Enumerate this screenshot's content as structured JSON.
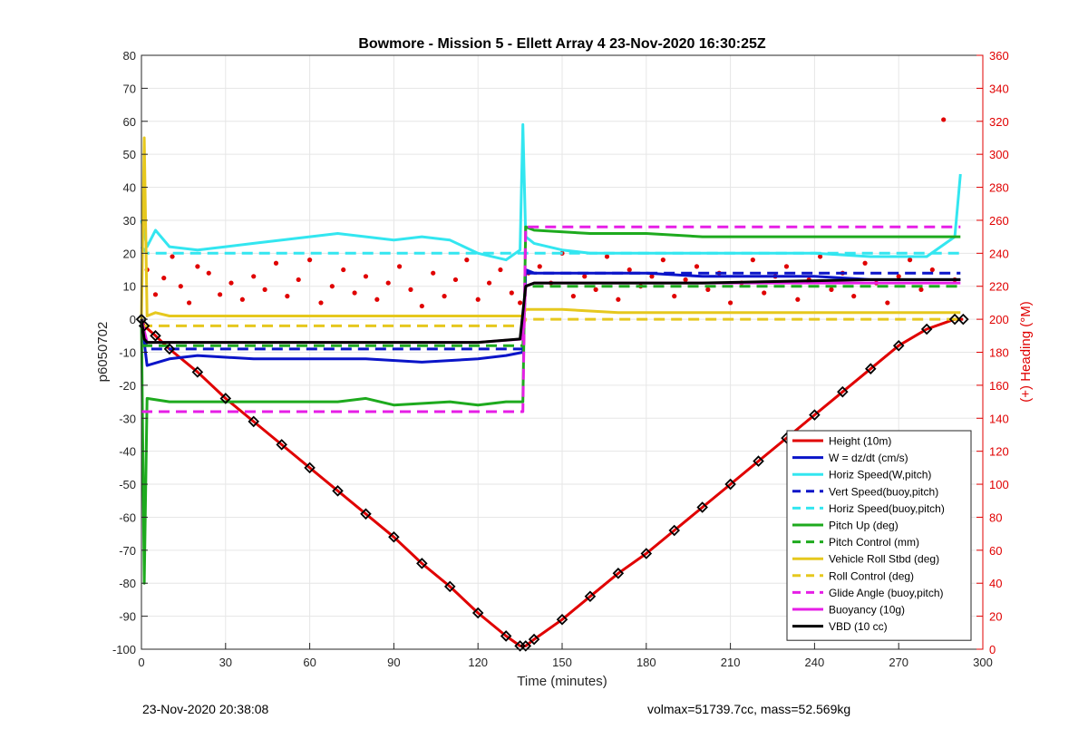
{
  "chart_data": {
    "type": "line",
    "title": "Bowmore - Mission 5 - Ellett Array 4 23-Nov-2020 16:30:25Z",
    "xlabel": "Time (minutes)",
    "ylabel": "p6050702",
    "y2label": "(+) Heading (°M)",
    "xlim": [
      0,
      300
    ],
    "ylim": [
      -100,
      80
    ],
    "y2lim": [
      0,
      360
    ],
    "xticks": [
      0,
      30,
      60,
      90,
      120,
      150,
      180,
      210,
      240,
      270,
      300
    ],
    "yticks": [
      -100,
      -90,
      -80,
      -70,
      -60,
      -50,
      -40,
      -30,
      -20,
      -10,
      0,
      10,
      20,
      30,
      40,
      50,
      60,
      70,
      80
    ],
    "y2ticks": [
      0,
      20,
      40,
      60,
      80,
      100,
      120,
      140,
      160,
      180,
      200,
      220,
      240,
      260,
      280,
      300,
      320,
      340,
      360
    ],
    "grid": true,
    "legend_position": "bottom-right",
    "series": [
      {
        "name": "Height (10m)",
        "color": "#e00000",
        "style": "solid",
        "x": [
          0,
          1,
          5,
          10,
          20,
          30,
          40,
          50,
          60,
          70,
          80,
          90,
          100,
          110,
          120,
          130,
          135,
          137,
          140,
          150,
          160,
          170,
          180,
          190,
          200,
          210,
          220,
          230,
          240,
          250,
          260,
          270,
          280,
          290,
          293
        ],
        "y": [
          0,
          -2,
          -5,
          -9,
          -16,
          -24,
          -31,
          -38,
          -45,
          -52,
          -59,
          -66,
          -74,
          -81,
          -89,
          -96,
          -99,
          -99,
          -97,
          -91,
          -84,
          -77,
          -71,
          -64,
          -57,
          -50,
          -43,
          -36,
          -29,
          -22,
          -15,
          -8,
          -3,
          0,
          0
        ]
      },
      {
        "name": "W = dz/dt (cm/s)",
        "color": "#0a14c8",
        "style": "solid",
        "x": [
          0,
          2,
          10,
          20,
          40,
          60,
          80,
          100,
          120,
          130,
          136,
          137,
          140,
          160,
          180,
          200,
          220,
          240,
          260,
          280,
          292
        ],
        "y": [
          0,
          -14,
          -12,
          -11,
          -12,
          -12,
          -12,
          -13,
          -12,
          -11,
          -10,
          15,
          14,
          14,
          14,
          13,
          13,
          13,
          12,
          12,
          12
        ]
      },
      {
        "name": "Horiz Speed(W,pitch)",
        "color": "#33e6f0",
        "style": "solid",
        "x": [
          0,
          2,
          5,
          10,
          20,
          30,
          40,
          50,
          60,
          70,
          80,
          90,
          100,
          110,
          120,
          130,
          135,
          136,
          137,
          140,
          150,
          160,
          180,
          200,
          220,
          240,
          260,
          280,
          290,
          292
        ],
        "y": [
          30,
          22,
          27,
          22,
          21,
          22,
          23,
          24,
          25,
          26,
          25,
          24,
          25,
          24,
          20,
          18,
          21,
          59,
          25,
          23,
          21,
          20,
          20,
          20,
          20,
          20,
          19,
          19,
          25,
          44
        ]
      },
      {
        "name": "Vert Speed(buoy,pitch)",
        "color": "#0a14c8",
        "style": "dashed",
        "x": [
          0,
          2,
          30,
          60,
          90,
          120,
          136,
          137,
          160,
          200,
          240,
          280,
          292
        ],
        "y": [
          0,
          -9,
          -9,
          -9,
          -9,
          -9,
          -9,
          14,
          14,
          14,
          14,
          14,
          14
        ]
      },
      {
        "name": "Horiz Speed(buoy,pitch)",
        "color": "#33e6f0",
        "style": "dashed",
        "x": [
          0,
          2,
          30,
          60,
          90,
          120,
          136,
          137,
          160,
          200,
          240,
          280,
          292
        ],
        "y": [
          22,
          20,
          20,
          20,
          20,
          20,
          20,
          20,
          20,
          20,
          20,
          20,
          20
        ]
      },
      {
        "name": "Pitch Up (deg)",
        "color": "#1eaa1e",
        "style": "solid",
        "x": [
          0,
          1,
          2,
          10,
          30,
          50,
          70,
          80,
          90,
          110,
          120,
          130,
          136,
          137,
          140,
          160,
          180,
          200,
          220,
          240,
          260,
          280,
          292
        ],
        "y": [
          0,
          -80,
          -24,
          -25,
          -25,
          -25,
          -25,
          -24,
          -26,
          -25,
          -26,
          -25,
          -25,
          28,
          27,
          26,
          26,
          25,
          25,
          25,
          25,
          25,
          25
        ]
      },
      {
        "name": "Pitch Control (mm)",
        "color": "#1eaa1e",
        "style": "dashed",
        "x": [
          0,
          2,
          30,
          60,
          90,
          120,
          136,
          137,
          160,
          200,
          240,
          280,
          292
        ],
        "y": [
          -8,
          -8,
          -8,
          -8,
          -8,
          -8,
          -8,
          10,
          10,
          10,
          10,
          10,
          10
        ]
      },
      {
        "name": "Vehicle Roll Stbd (deg)",
        "color": "#e6c81e",
        "style": "solid",
        "x": [
          0,
          1,
          2,
          5,
          10,
          20,
          30,
          40,
          60,
          80,
          100,
          120,
          136,
          137,
          150,
          170,
          200,
          230,
          260,
          280,
          292
        ],
        "y": [
          0,
          55,
          1,
          2,
          1,
          1,
          1,
          1,
          1,
          1,
          1,
          1,
          1,
          3,
          3,
          2,
          2,
          2,
          2,
          2,
          2
        ]
      },
      {
        "name": "Roll Control (deg)",
        "color": "#e6c81e",
        "style": "dashed",
        "x": [
          0,
          2,
          30,
          60,
          90,
          120,
          136,
          137,
          160,
          200,
          240,
          280,
          292
        ],
        "y": [
          -2,
          -2,
          -2,
          -2,
          -2,
          -2,
          -2,
          0,
          0,
          0,
          0,
          0,
          0
        ]
      },
      {
        "name": "Glide Angle (buoy,pitch)",
        "color": "#e61ee6",
        "style": "dashed",
        "x": [
          0,
          2,
          30,
          60,
          90,
          120,
          136,
          137,
          160,
          200,
          240,
          280,
          292
        ],
        "y": [
          -28,
          -28,
          -28,
          -28,
          -28,
          -28,
          -28,
          28,
          28,
          28,
          28,
          28,
          28
        ]
      },
      {
        "name": "Buoyancy (10g)",
        "color": "#e61ee6",
        "style": "solid",
        "x": [
          0,
          2,
          30,
          60,
          90,
          120,
          136,
          137,
          140,
          200,
          260,
          292
        ],
        "y": [
          0,
          -7,
          -7,
          -7,
          -7,
          -7,
          -6,
          10,
          11,
          11,
          11,
          11
        ]
      },
      {
        "name": "VBD (10 cc)",
        "color": "#000000",
        "style": "solid",
        "x": [
          0,
          1,
          2,
          30,
          60,
          90,
          120,
          135,
          137,
          140,
          200,
          260,
          292
        ],
        "y": [
          0,
          -6,
          -7,
          -7,
          -7,
          -7,
          -7,
          -6,
          10,
          11,
          11,
          12,
          12
        ]
      }
    ],
    "heading_series": {
      "name": "(+) Heading (°M)",
      "color": "#e00000",
      "axis": "right",
      "x": [
        2,
        5,
        8,
        11,
        14,
        17,
        20,
        24,
        28,
        32,
        36,
        40,
        44,
        48,
        52,
        56,
        60,
        64,
        68,
        72,
        76,
        80,
        84,
        88,
        92,
        96,
        100,
        104,
        108,
        112,
        116,
        120,
        124,
        128,
        132,
        135,
        138,
        142,
        146,
        150,
        154,
        158,
        162,
        166,
        170,
        174,
        178,
        182,
        186,
        190,
        194,
        198,
        202,
        206,
        210,
        214,
        218,
        222,
        226,
        230,
        234,
        238,
        242,
        246,
        250,
        254,
        258,
        262,
        266,
        270,
        274,
        278,
        282,
        286,
        290
      ],
      "y": [
        230,
        215,
        225,
        238,
        220,
        210,
        232,
        228,
        215,
        222,
        212,
        226,
        218,
        234,
        214,
        224,
        236,
        210,
        220,
        230,
        216,
        226,
        212,
        222,
        232,
        218,
        208,
        228,
        214,
        224,
        236,
        212,
        222,
        230,
        216,
        210,
        228,
        232,
        222,
        240,
        214,
        226,
        218,
        238,
        212,
        230,
        220,
        226,
        236,
        214,
        224,
        232,
        218,
        228,
        210,
        222,
        236,
        216,
        226,
        232,
        212,
        224,
        238,
        218,
        228,
        214,
        234,
        222,
        210,
        226,
        236,
        218,
        230,
        321,
        224
      ]
    }
  },
  "footer": {
    "timestamp": "23-Nov-2020 20:38:08",
    "stats": "volmax=51739.7cc, mass=52.569kg"
  }
}
